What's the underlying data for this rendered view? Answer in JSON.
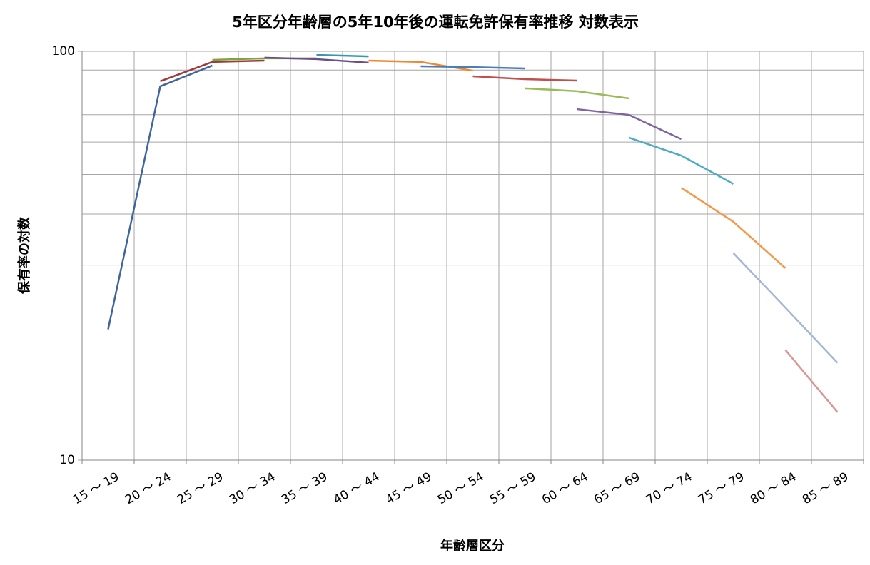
{
  "chart_data": {
    "type": "line",
    "title": "5年区分年齢層の5年10年後の運転免許保有率推移  対数表示",
    "x_label": "年齢層区分",
    "y_label": "保有率の対数",
    "categories": [
      "15 ～ 19",
      "20 ～ 24",
      "25 ～ 29",
      "30 ～ 34",
      "35 ～ 39",
      "40 ～ 44",
      "45 ～ 49",
      "50 ～ 54",
      "55 ～ 59",
      "60 ～ 64",
      "65 ～ 69",
      "70 ～ 74",
      "75 ～ 79",
      "80 ～ 84",
      "85 ～ 89"
    ],
    "log_y": true,
    "ylim": [
      10,
      100
    ],
    "yticks": [
      10,
      100
    ],
    "yminor": [
      20,
      30,
      40,
      50,
      60,
      70,
      80,
      90
    ],
    "grid": true,
    "series": [
      {
        "color": "#3f659c",
        "values": [
          20.9,
          82.1,
          92.3,
          null,
          null,
          null,
          null,
          null,
          null,
          null,
          null,
          null,
          null,
          null,
          null
        ]
      },
      {
        "color": "#9e3c3a",
        "values": [
          null,
          84.5,
          94.2,
          94.9,
          null,
          null,
          null,
          null,
          null,
          null,
          null,
          null,
          null,
          null,
          null
        ]
      },
      {
        "color": "#7fa340",
        "values": [
          null,
          null,
          95.3,
          96.1,
          96.1,
          null,
          null,
          null,
          null,
          null,
          null,
          null,
          null,
          null,
          null
        ]
      },
      {
        "color": "#6a4f8c",
        "values": [
          null,
          null,
          null,
          96.5,
          95.7,
          93.8,
          null,
          null,
          null,
          null,
          null,
          null,
          null,
          null,
          null
        ]
      },
      {
        "color": "#3399ad",
        "values": [
          null,
          null,
          null,
          null,
          98.0,
          97.2,
          null,
          null,
          null,
          null,
          null,
          null,
          null,
          null,
          null
        ]
      },
      {
        "color": "#f0882f",
        "values": [
          null,
          null,
          null,
          null,
          null,
          94.9,
          94.2,
          89.7,
          null,
          null,
          null,
          null,
          null,
          null,
          null
        ]
      },
      {
        "color": "#4a7ebb",
        "values": [
          null,
          null,
          null,
          null,
          null,
          null,
          91.9,
          91.5,
          90.8,
          null,
          null,
          null,
          null,
          null,
          null
        ]
      },
      {
        "color": "#c0504d",
        "values": [
          null,
          null,
          null,
          null,
          null,
          null,
          null,
          86.9,
          85.5,
          84.8,
          null,
          null,
          null,
          null,
          null
        ]
      },
      {
        "color": "#9bbb59",
        "values": [
          null,
          null,
          null,
          null,
          null,
          null,
          null,
          null,
          81.2,
          79.9,
          76.7,
          null,
          null,
          null,
          null
        ]
      },
      {
        "color": "#8064a2",
        "values": [
          null,
          null,
          null,
          null,
          null,
          null,
          null,
          null,
          null,
          72.2,
          69.9,
          61.0,
          null,
          null,
          null
        ]
      },
      {
        "color": "#4bacc6",
        "values": [
          null,
          null,
          null,
          null,
          null,
          null,
          null,
          null,
          null,
          null,
          61.5,
          55.6,
          47.4,
          null,
          null
        ]
      },
      {
        "color": "#f79646",
        "values": [
          null,
          null,
          null,
          null,
          null,
          null,
          null,
          null,
          null,
          null,
          null,
          46.4,
          38.3,
          29.5,
          null
        ]
      },
      {
        "color": "#a5b6d4",
        "values": [
          null,
          null,
          null,
          null,
          null,
          null,
          null,
          null,
          null,
          null,
          null,
          null,
          32.1,
          23.6,
          17.3
        ]
      },
      {
        "color": "#d99694",
        "values": [
          null,
          null,
          null,
          null,
          null,
          null,
          null,
          null,
          null,
          null,
          null,
          null,
          null,
          18.6,
          13.1
        ]
      }
    ]
  }
}
